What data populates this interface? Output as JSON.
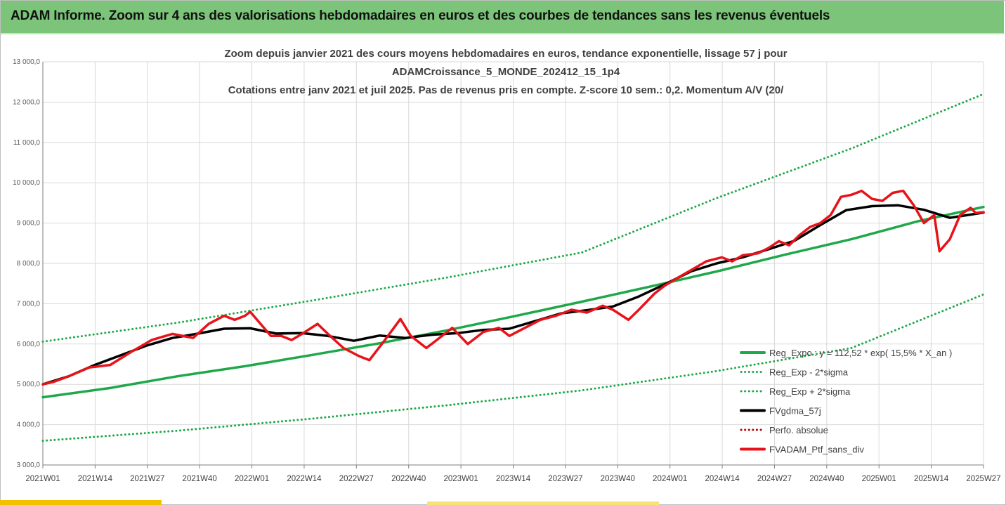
{
  "banner": {
    "title": "ADAM Informe. Zoom sur 4 ans des valorisations hebdomadaires en euros et des courbes de tendances sans les revenus éventuels"
  },
  "chart_data": {
    "type": "line",
    "title_lines": [
      "Zoom depuis janvier 2021 des cours moyens hebdomadaires  en euros, tendance exponentielle, lissage 57 j pour",
      "ADAMCroissance_5_MONDE_202412_15_1p4",
      "Cotations entre janv 2021 et juil 2025. Pas de revenus pris en compte. Z-score 10 sem.: 0,2. Momentum A/V (20/"
    ],
    "ylim": [
      3000,
      13000
    ],
    "yticks": [
      "3 000,0",
      "4 000,0",
      "5 000,0",
      "6 000,0",
      "7 000,0",
      "8 000,0",
      "9 000,0",
      "10 000,0",
      "11 000,0",
      "12 000,0",
      "13 000,0"
    ],
    "xtick_labels": [
      "2021W01",
      "2021W14",
      "2021W27",
      "2021W40",
      "2022W01",
      "2022W14",
      "2022W27",
      "2022W40",
      "2023W01",
      "2023W14",
      "2023W27",
      "2023W40",
      "2024W01",
      "2024W14",
      "2024W27",
      "2024W40",
      "2025W01",
      "2025W14",
      "2025W27"
    ],
    "x_range_weeks": [
      0,
      234
    ],
    "grid": true,
    "legend_position": "bottom-right",
    "colors": {
      "trend": "#1fa84a",
      "band": "#1fa84a",
      "smooth": "#000000",
      "perf": "#c00000",
      "price": "#e8121a"
    },
    "series": [
      {
        "name": "Reg_Expo : y = 112,52 * exp( 15,5% *  X_an )",
        "style": "solid",
        "color": "#1fa84a",
        "points": [
          [
            0,
            4680
          ],
          [
            26,
            4910
          ],
          [
            52,
            5200
          ],
          [
            78,
            5450
          ],
          [
            104,
            5730
          ],
          [
            130,
            6020
          ],
          [
            156,
            6340
          ],
          [
            182,
            6690
          ],
          [
            208,
            7050
          ],
          [
            234,
            7420
          ],
          [
            260,
            7800
          ],
          [
            286,
            8210
          ],
          [
            312,
            8600
          ],
          [
            338,
            9050
          ],
          [
            363,
            9400
          ]
        ]
      },
      {
        "name": "Reg_Exp - 2*sigma",
        "style": "dotted",
        "color": "#1fa84a",
        "points": [
          [
            0,
            3600
          ],
          [
            52,
            3850
          ],
          [
            104,
            4150
          ],
          [
            156,
            4480
          ],
          [
            208,
            4850
          ],
          [
            260,
            5330
          ],
          [
            312,
            5900
          ],
          [
            363,
            7230
          ]
        ]
      },
      {
        "name": "Reg_Exp + 2*sigma",
        "style": "dotted",
        "color": "#1fa84a",
        "points": [
          [
            0,
            6060
          ],
          [
            52,
            6530
          ],
          [
            104,
            7080
          ],
          [
            156,
            7650
          ],
          [
            208,
            8270
          ],
          [
            260,
            9620
          ],
          [
            312,
            10850
          ],
          [
            363,
            12200
          ]
        ]
      },
      {
        "name": "FVgdma_57j",
        "style": "solid",
        "color": "#000000",
        "points": [
          [
            0,
            5000
          ],
          [
            10,
            5200
          ],
          [
            20,
            5480
          ],
          [
            30,
            5720
          ],
          [
            40,
            5960
          ],
          [
            50,
            6150
          ],
          [
            60,
            6260
          ],
          [
            70,
            6380
          ],
          [
            80,
            6390
          ],
          [
            90,
            6260
          ],
          [
            100,
            6270
          ],
          [
            110,
            6200
          ],
          [
            120,
            6080
          ],
          [
            130,
            6210
          ],
          [
            140,
            6150
          ],
          [
            150,
            6230
          ],
          [
            160,
            6270
          ],
          [
            170,
            6350
          ],
          [
            180,
            6380
          ],
          [
            190,
            6570
          ],
          [
            200,
            6760
          ],
          [
            210,
            6840
          ],
          [
            220,
            6930
          ],
          [
            230,
            7180
          ],
          [
            240,
            7480
          ],
          [
            250,
            7800
          ],
          [
            260,
            8000
          ],
          [
            270,
            8150
          ],
          [
            280,
            8350
          ],
          [
            290,
            8560
          ],
          [
            300,
            8950
          ],
          [
            310,
            9320
          ],
          [
            320,
            9420
          ],
          [
            330,
            9440
          ],
          [
            340,
            9330
          ],
          [
            350,
            9130
          ],
          [
            363,
            9260
          ]
        ]
      },
      {
        "name": "Perfo. absolue",
        "style": "dotted",
        "color": "#c00000",
        "points": []
      },
      {
        "name": "FVADAM_Ptf_sans_div",
        "style": "solid",
        "color": "#e8121a",
        "points": [
          [
            0,
            5000
          ],
          [
            4,
            5060
          ],
          [
            10,
            5200
          ],
          [
            18,
            5420
          ],
          [
            26,
            5480
          ],
          [
            34,
            5800
          ],
          [
            42,
            6100
          ],
          [
            50,
            6250
          ],
          [
            58,
            6150
          ],
          [
            64,
            6500
          ],
          [
            70,
            6700
          ],
          [
            74,
            6600
          ],
          [
            78,
            6700
          ],
          [
            80,
            6800
          ],
          [
            84,
            6500
          ],
          [
            88,
            6200
          ],
          [
            92,
            6200
          ],
          [
            96,
            6100
          ],
          [
            100,
            6250
          ],
          [
            106,
            6500
          ],
          [
            110,
            6250
          ],
          [
            116,
            5900
          ],
          [
            122,
            5700
          ],
          [
            126,
            5600
          ],
          [
            132,
            6100
          ],
          [
            138,
            6620
          ],
          [
            142,
            6200
          ],
          [
            148,
            5900
          ],
          [
            152,
            6100
          ],
          [
            158,
            6400
          ],
          [
            164,
            6000
          ],
          [
            170,
            6300
          ],
          [
            176,
            6400
          ],
          [
            180,
            6200
          ],
          [
            186,
            6400
          ],
          [
            192,
            6600
          ],
          [
            198,
            6700
          ],
          [
            204,
            6850
          ],
          [
            210,
            6780
          ],
          [
            216,
            6950
          ],
          [
            220,
            6850
          ],
          [
            226,
            6600
          ],
          [
            230,
            6850
          ],
          [
            236,
            7250
          ],
          [
            240,
            7450
          ],
          [
            246,
            7680
          ],
          [
            252,
            7900
          ],
          [
            256,
            8050
          ],
          [
            262,
            8150
          ],
          [
            266,
            8050
          ],
          [
            270,
            8200
          ],
          [
            276,
            8250
          ],
          [
            280,
            8380
          ],
          [
            284,
            8550
          ],
          [
            288,
            8450
          ],
          [
            292,
            8700
          ],
          [
            296,
            8900
          ],
          [
            300,
            9000
          ],
          [
            304,
            9200
          ],
          [
            308,
            9650
          ],
          [
            312,
            9700
          ],
          [
            316,
            9800
          ],
          [
            320,
            9600
          ],
          [
            324,
            9550
          ],
          [
            328,
            9750
          ],
          [
            332,
            9800
          ],
          [
            336,
            9450
          ],
          [
            340,
            9000
          ],
          [
            344,
            9200
          ],
          [
            346,
            8300
          ],
          [
            350,
            8600
          ],
          [
            354,
            9200
          ],
          [
            358,
            9380
          ],
          [
            360,
            9250
          ],
          [
            363,
            9270
          ]
        ]
      }
    ]
  }
}
